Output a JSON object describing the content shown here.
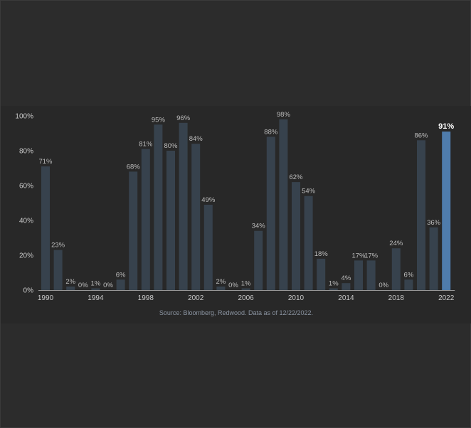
{
  "chart_data": {
    "type": "bar",
    "x": [
      1990,
      1991,
      1992,
      1993,
      1994,
      1995,
      1996,
      1997,
      1998,
      1999,
      2000,
      2001,
      2002,
      2003,
      2004,
      2005,
      2006,
      2007,
      2008,
      2009,
      2010,
      2011,
      2012,
      2013,
      2014,
      2015,
      2016,
      2017,
      2018,
      2019,
      2020,
      2021,
      2022
    ],
    "values": [
      71,
      23,
      2,
      0,
      1,
      0,
      6,
      68,
      81,
      95,
      80,
      96,
      84,
      49,
      2,
      0,
      1,
      34,
      88,
      98,
      62,
      54,
      18,
      1,
      4,
      17,
      17,
      0,
      24,
      6,
      86,
      36,
      91
    ],
    "labels": [
      "71%",
      "23%",
      "2%",
      "0%",
      "1%",
      "0%",
      "6%",
      "68%",
      "81%",
      "95%",
      "80%",
      "96%",
      "84%",
      "49%",
      "2%",
      "0%",
      "1%",
      "34%",
      "88%",
      "98%",
      "62%",
      "54%",
      "18%",
      "1%",
      "4%",
      "17%",
      "17%",
      "0%",
      "24%",
      "6%",
      "86%",
      "36%",
      "91%"
    ],
    "x_ticks": [
      "1990",
      "1994",
      "1998",
      "2002",
      "2006",
      "2010",
      "2014",
      "2018",
      "2022"
    ],
    "y_ticks": [
      "0%",
      "20%",
      "40%",
      "60%",
      "80%",
      "100%"
    ],
    "ylim": [
      0,
      100
    ],
    "highlight_index": 32,
    "colors": {
      "bar": "#37424d",
      "highlight": "#4f7cac",
      "axis": "#9a9a9a"
    },
    "grid": false
  },
  "source": "Source: Bloomberg, Redwood. Data as of 12/22/2022."
}
